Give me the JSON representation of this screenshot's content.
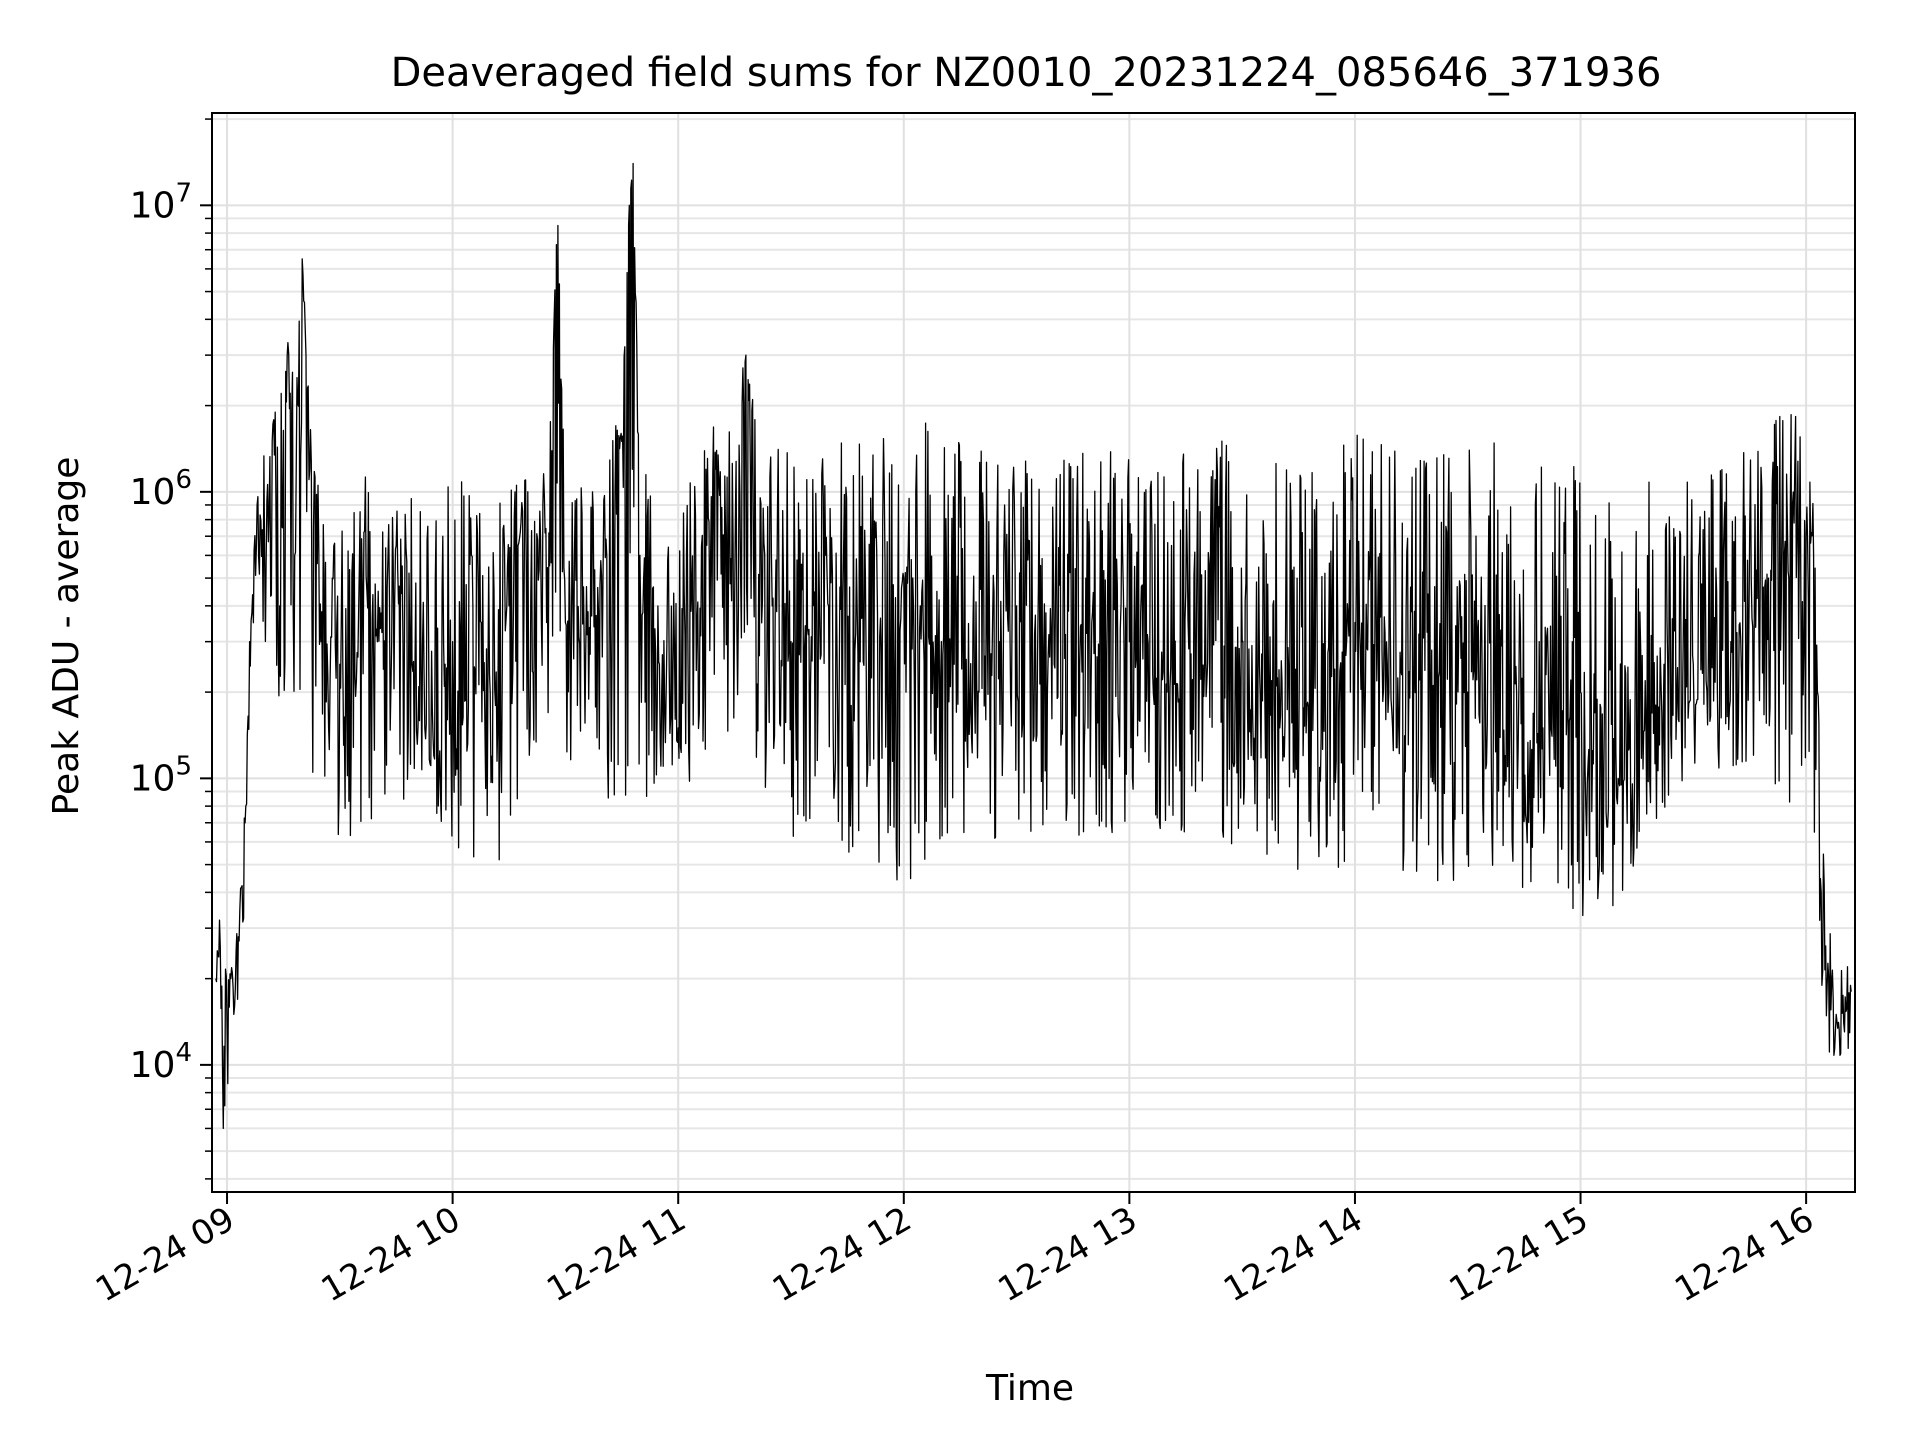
{
  "chart_data": {
    "type": "line",
    "title": "Deaveraged field sums for NZ0010_20231224_085646_371936",
    "xlabel": "Time",
    "ylabel": "Peak ADU - average",
    "xlim": [
      "2023-12-24 08:56",
      "2023-12-24 16:13"
    ],
    "ylim": [
      3600,
      21000000
    ],
    "yscale": "log",
    "grid": true,
    "grid_minor": true,
    "line_color": "#000000",
    "x_ticks": [
      {
        "time": "2023-12-24 09:00",
        "label": "12-24 09"
      },
      {
        "time": "2023-12-24 10:00",
        "label": "12-24 10"
      },
      {
        "time": "2023-12-24 11:00",
        "label": "12-24 11"
      },
      {
        "time": "2023-12-24 12:00",
        "label": "12-24 12"
      },
      {
        "time": "2023-12-24 13:00",
        "label": "12-24 13"
      },
      {
        "time": "2023-12-24 14:00",
        "label": "12-24 14"
      },
      {
        "time": "2023-12-24 15:00",
        "label": "12-24 15"
      },
      {
        "time": "2023-12-24 16:00",
        "label": "12-24 16"
      }
    ],
    "y_ticks": [
      {
        "value": 10000,
        "base": "10",
        "exp": "4"
      },
      {
        "value": 100000,
        "base": "10",
        "exp": "5"
      },
      {
        "value": 1000000,
        "base": "10",
        "exp": "6"
      },
      {
        "value": 10000000,
        "base": "10",
        "exp": "7"
      }
    ],
    "series": [
      {
        "x": [
          "2023-12-24 08:57",
          "2023-12-24 08:58",
          "2023-12-24 08:59",
          "2023-12-24 09:00",
          "2023-12-24 09:01",
          "2023-12-24 09:02",
          "2023-12-24 09:03",
          "2023-12-24 09:05",
          "2023-12-24 09:06",
          "2023-12-24 09:08",
          "2023-12-24 09:10",
          "2023-12-24 09:12",
          "2023-12-24 09:14",
          "2023-12-24 09:16",
          "2023-12-24 09:18",
          "2023-12-24 09:20",
          "2023-12-24 09:22",
          "2023-12-24 09:25",
          "2023-12-24 09:27",
          "2023-12-24 09:28",
          "2023-12-24 09:30",
          "2023-12-24 09:33",
          "2023-12-24 09:36",
          "2023-12-24 09:40",
          "2023-12-24 09:45",
          "2023-12-24 09:50",
          "2023-12-24 09:55",
          "2023-12-24 10:00",
          "2023-12-24 10:05",
          "2023-12-24 10:10",
          "2023-12-24 10:15",
          "2023-12-24 10:20",
          "2023-12-24 10:25",
          "2023-12-24 10:27",
          "2023-12-24 10:28",
          "2023-12-24 10:30",
          "2023-12-24 10:35",
          "2023-12-24 10:40",
          "2023-12-24 10:45",
          "2023-12-24 10:47",
          "2023-12-24 10:48",
          "2023-12-24 10:50",
          "2023-12-24 10:55",
          "2023-12-24 11:00",
          "2023-12-24 11:05",
          "2023-12-24 11:10",
          "2023-12-24 11:15",
          "2023-12-24 11:18",
          "2023-12-24 11:20",
          "2023-12-24 11:25",
          "2023-12-24 11:30",
          "2023-12-24 11:40",
          "2023-12-24 11:50",
          "2023-12-24 12:00",
          "2023-12-24 12:10",
          "2023-12-24 12:20",
          "2023-12-24 12:30",
          "2023-12-24 12:40",
          "2023-12-24 12:50",
          "2023-12-24 13:00",
          "2023-12-24 13:10",
          "2023-12-24 13:20",
          "2023-12-24 13:30",
          "2023-12-24 13:40",
          "2023-12-24 13:50",
          "2023-12-24 14:00",
          "2023-12-24 14:10",
          "2023-12-24 14:20",
          "2023-12-24 14:30",
          "2023-12-24 14:40",
          "2023-12-24 14:50",
          "2023-12-24 15:00",
          "2023-12-24 15:05",
          "2023-12-24 15:10",
          "2023-12-24 15:20",
          "2023-12-24 15:30",
          "2023-12-24 15:40",
          "2023-12-24 15:50",
          "2023-12-24 15:55",
          "2023-12-24 16:00",
          "2023-12-24 16:02",
          "2023-12-24 16:04",
          "2023-12-24 16:06",
          "2023-12-24 16:08",
          "2023-12-24 16:10",
          "2023-12-24 16:12"
        ],
        "y": [
          20000,
          32000,
          6000,
          14000,
          20000,
          16000,
          28000,
          80000,
          300000,
          900000,
          600000,
          1500000,
          400000,
          3000000,
          600000,
          6500000,
          1200000,
          300000,
          150000,
          500000,
          250000,
          120000,
          450000,
          300000,
          650000,
          250000,
          120000,
          300000,
          600000,
          200000,
          400000,
          1000000,
          350000,
          4000000,
          8500000,
          350000,
          300000,
          500000,
          1500000,
          10000000,
          14000000,
          400000,
          250000,
          150000,
          350000,
          1200000,
          400000,
          3000000,
          600000,
          400000,
          300000,
          400000,
          250000,
          500000,
          300000,
          200000,
          400000,
          250000,
          350000,
          300000,
          200000,
          250000,
          300000,
          150000,
          200000,
          350000,
          150000,
          250000,
          200000,
          120000,
          150000,
          200000,
          50000,
          100000,
          180000,
          250000,
          300000,
          500000,
          800000,
          700000,
          600000,
          40000,
          20000,
          15000,
          14000,
          18000
        ],
        "envelope_high": [
          22000,
          33000,
          25000,
          21000,
          22000,
          23000,
          35000,
          100000,
          350000,
          1300000,
          1500000,
          2000000,
          2300000,
          3500000,
          3000000,
          6500000,
          2500000,
          900000,
          600000,
          700000,
          900000,
          800000,
          1200000,
          1000000,
          900000,
          1000000,
          800000,
          1200000,
          1000000,
          1100000,
          1200000,
          1100000,
          1200000,
          6000000,
          8500000,
          900000,
          1100000,
          1300000,
          2000000,
          10000000,
          14000000,
          1600000,
          1000000,
          900000,
          1200000,
          1800000,
          1700000,
          3300000,
          2000000,
          1700000,
          1300000,
          1500000,
          1700000,
          1800000,
          1700000,
          1400000,
          1300000,
          1300000,
          1500000,
          1400000,
          1300000,
          1500000,
          1600000,
          1400000,
          1300000,
          1600000,
          1800000,
          1600000,
          1500000,
          1500000,
          1400000,
          1300000,
          900000,
          1000000,
          1100000,
          1200000,
          1300000,
          1600000,
          2300000,
          1600000,
          1000000,
          100000,
          30000,
          25000,
          22000,
          22000
        ],
        "envelope_low": [
          18000,
          14000,
          5500,
          8000,
          10000,
          12000,
          15000,
          40000,
          200000,
          600000,
          200000,
          400000,
          130000,
          200000,
          130000,
          90000,
          100000,
          75000,
          80000,
          70000,
          60000,
          55000,
          60000,
          70000,
          80000,
          90000,
          70000,
          60000,
          50000,
          40000,
          60000,
          80000,
          100000,
          150000,
          250000,
          100000,
          120000,
          90000,
          70000,
          60000,
          200000,
          65000,
          100000,
          110000,
          90000,
          100000,
          150000,
          250000,
          120000,
          70000,
          55000,
          60000,
          50000,
          40000,
          60000,
          60000,
          55000,
          65000,
          60000,
          60000,
          65000,
          55000,
          60000,
          50000,
          45000,
          50000,
          45000,
          40000,
          45000,
          35000,
          45000,
          30000,
          35000,
          35000,
          70000,
          100000,
          110000,
          100000,
          80000,
          80000,
          70000,
          20000,
          11000,
          10000,
          9000,
          11000
        ]
      }
    ]
  }
}
